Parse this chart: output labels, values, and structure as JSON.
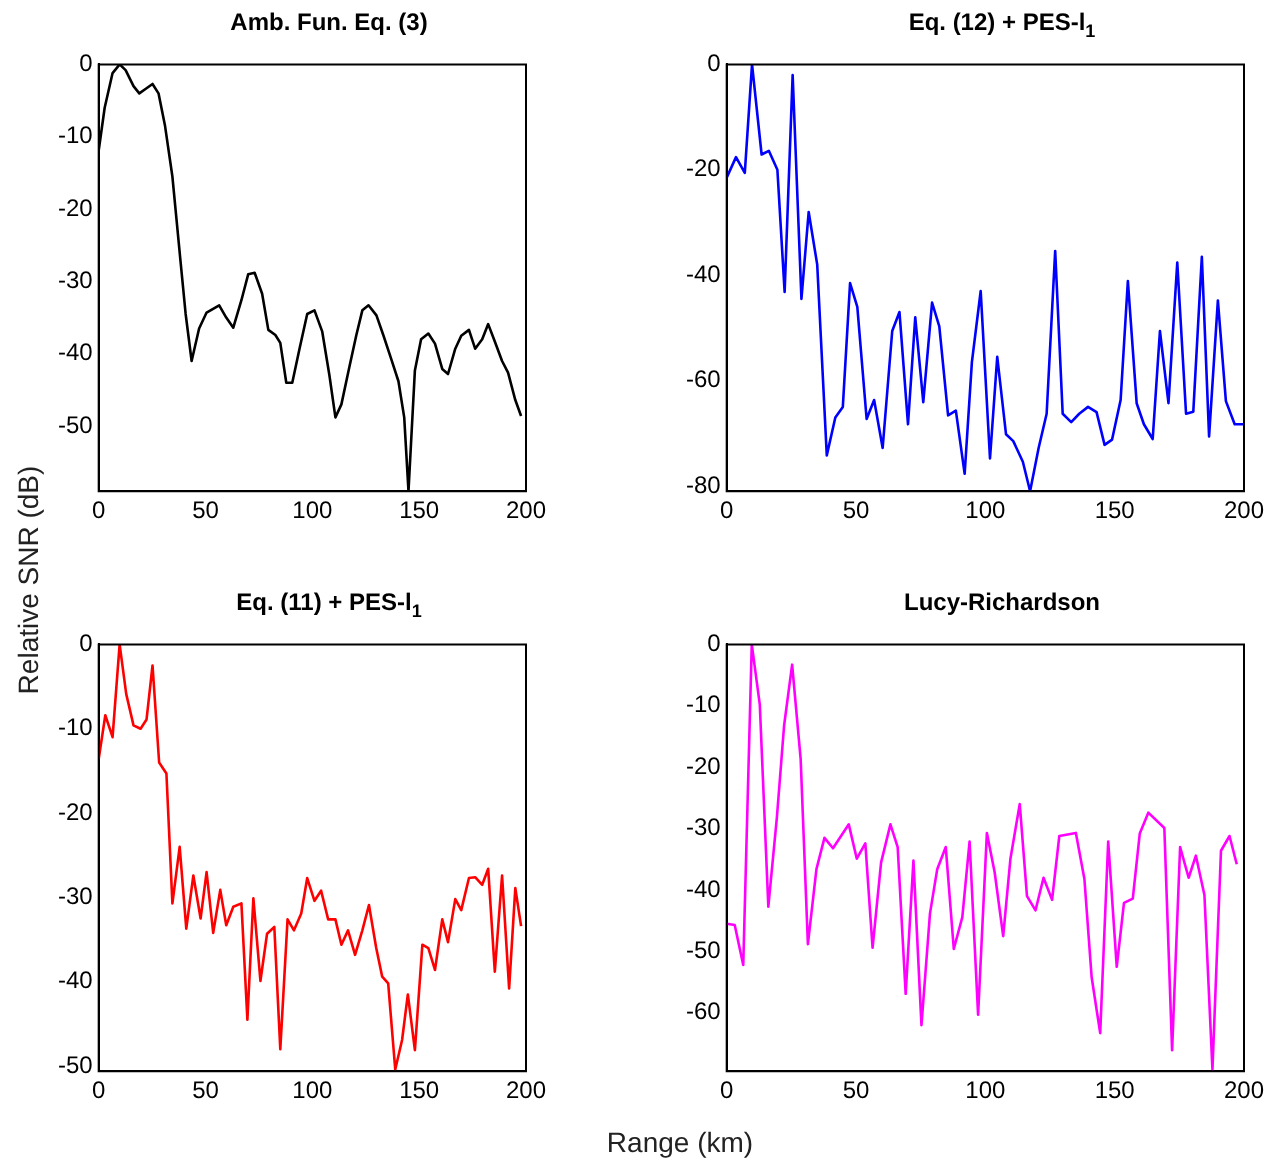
{
  "chart_data": [
    {
      "type": "line",
      "title": "Amb. Fun. Eq. (3)",
      "ylabel": "Relative SNR (dB)",
      "color": "#000000",
      "xlim": [
        0,
        200
      ],
      "xticks": [
        0,
        50,
        100,
        150,
        200
      ],
      "ylim": [
        -59,
        0
      ],
      "yticks": [
        -50,
        -40,
        -30,
        -20,
        -10,
        0
      ],
      "grid": false,
      "legend": false,
      "marker": "none",
      "x": [
        0,
        2.8,
        6.5,
        9.8,
        12.6,
        16.3,
        19,
        22.4,
        25.2,
        28,
        31,
        34.5,
        37.9,
        40.7,
        43.5,
        47,
        50.5,
        56.4,
        59.7,
        63,
        66.8,
        70,
        73,
        76.5,
        79.4,
        82.7,
        85,
        87.8,
        90.6,
        94,
        97.6,
        101,
        104.6,
        108,
        110.8,
        113.6,
        117.2,
        120.6,
        123.4,
        126.3,
        130,
        133.2,
        136.9,
        140.3,
        143,
        145,
        148,
        150.9,
        154.3,
        157.4,
        160.8,
        163.5,
        166.9,
        169.7,
        173.3,
        176.2,
        179.5,
        182.3,
        185.4,
        188.8,
        191.6,
        195,
        197.7
      ],
      "values": [
        -11.9,
        -6,
        -1.2,
        0,
        -0.8,
        -3,
        -4,
        -3.3,
        -2.7,
        -4,
        -8.4,
        -15.5,
        -26,
        -34.5,
        -41,
        -36.5,
        -34.3,
        -33.3,
        -35,
        -36.4,
        -32.6,
        -29,
        -28.8,
        -31.7,
        -36.7,
        -37.4,
        -38.5,
        -44,
        -44,
        -39.3,
        -34.5,
        -34,
        -36.9,
        -43,
        -48.8,
        -47,
        -42,
        -37.4,
        -34,
        -33.3,
        -34.7,
        -37.4,
        -40.7,
        -43.8,
        -48.8,
        -59,
        -42.3,
        -38,
        -37.2,
        -38.6,
        -42.1,
        -42.8,
        -39.3,
        -37.5,
        -36.7,
        -39.3,
        -38,
        -35.9,
        -38.3,
        -41,
        -42.6,
        -46.4,
        -48.6
      ]
    },
    {
      "type": "line",
      "title": "Eq. (12) + PES-l$_{1}$",
      "color": "#0000ff",
      "xlim": [
        0,
        200
      ],
      "xticks": [
        0,
        50,
        100,
        150,
        200
      ],
      "ylim": [
        -81,
        0
      ],
      "yticks": [
        -80,
        -60,
        -40,
        -20,
        0
      ],
      "grid": false,
      "legend": false,
      "marker": "none",
      "x": [
        0,
        3.6,
        7,
        9.8,
        13.5,
        16.3,
        19.6,
        22.4,
        25.5,
        28.9,
        31.7,
        35,
        38.7,
        42,
        44.9,
        47.7,
        50.5,
        54.1,
        57,
        60.3,
        64,
        66.8,
        70.1,
        72.9,
        76,
        79.4,
        82.2,
        85.6,
        88.6,
        92,
        94.8,
        98.2,
        101.8,
        104.6,
        108,
        110.8,
        114.5,
        117.3,
        120.6,
        123.7,
        127,
        129.9,
        133.2,
        136.3,
        139.7,
        143,
        146.1,
        149,
        152.3,
        155.1,
        158.5,
        161.3,
        164.7,
        167.5,
        170.8,
        174.2,
        177.6,
        180.4,
        183.7,
        186.5,
        189.9,
        193,
        196.4,
        200
      ],
      "values": [
        -21.5,
        -17.6,
        -20.6,
        0,
        -17.1,
        -16.4,
        -20,
        -43.2,
        -2,
        -44.5,
        -28,
        -38,
        -74.2,
        -67,
        -65,
        -41.5,
        -46,
        -67.3,
        -63.7,
        -72.8,
        -50.6,
        -47,
        -68.3,
        -48,
        -64.1,
        -45.2,
        -49.7,
        -66.6,
        -65.7,
        -77.7,
        -56.5,
        -43,
        -74.8,
        -55.5,
        -70.2,
        -71.5,
        -75.4,
        -81,
        -72.8,
        -66.3,
        -35.4,
        -66.3,
        -67.9,
        -66.3,
        -65,
        -66,
        -72.2,
        -71.2,
        -63.7,
        -41.1,
        -64.3,
        -68.3,
        -71.1,
        -50.6,
        -64.3,
        -37.6,
        -66.3,
        -65.9,
        -36.5,
        -70.6,
        -44.8,
        -63.9,
        -68.3,
        -68.3
      ]
    },
    {
      "type": "line",
      "title": "Eq. (11) + PES-l$_{1}$",
      "xlabel": "Range (km)",
      "color": "#ff0000",
      "xlim": [
        0,
        200
      ],
      "xticks": [
        0,
        50,
        100,
        150,
        200
      ],
      "ylim": [
        -50.6,
        0
      ],
      "yticks": [
        -50,
        -40,
        -30,
        -20,
        -10,
        0
      ],
      "grid": false,
      "legend": false,
      "marker": "none",
      "x": [
        0,
        3.1,
        6.5,
        9.8,
        12.9,
        16.3,
        19.6,
        22.4,
        25.2,
        28.3,
        31.7,
        34.5,
        37.9,
        41,
        44.3,
        47.7,
        50.5,
        53.6,
        56.9,
        59.7,
        63,
        66.8,
        69.6,
        72.4,
        75.7,
        78.8,
        82.2,
        85,
        88.4,
        91.4,
        94.8,
        97.6,
        101,
        104.1,
        107.4,
        110.8,
        113.6,
        116.7,
        120,
        123.4,
        126.5,
        129.9,
        132.7,
        135.5,
        138.8,
        142,
        144.7,
        148,
        151.5,
        154.3,
        157.4,
        160.8,
        163.5,
        166.9,
        169.7,
        173.3,
        176.2,
        179.5,
        182.3,
        185.4,
        188.8,
        192.1,
        195,
        197.7
      ],
      "values": [
        -13.6,
        -8.4,
        -11,
        0,
        -5.9,
        -9.6,
        -10,
        -8.9,
        -2.5,
        -14,
        -15.3,
        -30.7,
        -24,
        -33.7,
        -27.4,
        -32.5,
        -27,
        -34.2,
        -29.1,
        -33.3,
        -31.1,
        -30.7,
        -44.5,
        -30.1,
        -39.9,
        -34.3,
        -33.5,
        -48,
        -32.6,
        -33.9,
        -31.9,
        -27.7,
        -30.4,
        -29.2,
        -32.6,
        -32.6,
        -35.6,
        -33.9,
        -36.8,
        -33.9,
        -30.9,
        -36,
        -39.4,
        -40.2,
        -50.4,
        -46.9,
        -41.5,
        -48.1,
        -35.6,
        -36,
        -38.6,
        -32.6,
        -35.3,
        -30.2,
        -31.5,
        -27.7,
        -27.6,
        -28.5,
        -26.6,
        -38.8,
        -27.4,
        -40.8,
        -28.9,
        -33.4
      ]
    },
    {
      "type": "line",
      "title": "Lucy-Richardson",
      "color": "#ff00ff",
      "xlim": [
        0,
        200
      ],
      "xticks": [
        0,
        50,
        100,
        150,
        200
      ],
      "ylim": [
        -69.5,
        0
      ],
      "yticks": [
        -60,
        -50,
        -40,
        -30,
        -20,
        -10,
        0
      ],
      "grid": false,
      "legend": false,
      "marker": "none",
      "x": [
        0,
        3.1,
        6.4,
        9.7,
        12.8,
        16.1,
        19.4,
        22.2,
        25.3,
        28.6,
        31.4,
        34.7,
        37.8,
        41.1,
        47.2,
        50.3,
        53.6,
        56.4,
        59.7,
        63.3,
        66.1,
        69.2,
        72.2,
        75.3,
        78.6,
        81.4,
        84.7,
        87.8,
        91.1,
        93.9,
        97.2,
        100.6,
        103.6,
        106.9,
        109.7,
        113.3,
        116.1,
        119.4,
        122.5,
        125.8,
        128.6,
        135,
        138.3,
        141.1,
        144.4,
        147.5,
        150.8,
        153.6,
        157,
        159.7,
        163,
        169.2,
        172.2,
        175.3,
        178.6,
        181.4,
        184.7,
        187.8,
        191.1,
        194.4,
        197.2
      ],
      "values": [
        -45.5,
        -45.7,
        -52.2,
        0,
        -9.8,
        -42.7,
        -28.2,
        -13.2,
        -3.3,
        -18.7,
        -48.8,
        -36.6,
        -31.5,
        -33.2,
        -29.3,
        -34.9,
        -32.4,
        -49.4,
        -35.5,
        -29.3,
        -33,
        -56.9,
        -35.2,
        -62,
        -43.8,
        -36.6,
        -33,
        -49.6,
        -44.4,
        -32.1,
        -60.3,
        -30.7,
        -37.1,
        -47.5,
        -34.9,
        -26,
        -41,
        -43.3,
        -38,
        -41.6,
        -31.2,
        -30.7,
        -38.2,
        -54.2,
        -63.3,
        -32.1,
        -52.5,
        -42.1,
        -41.4,
        -30.8,
        -27.4,
        -29.9,
        -66.1,
        -33,
        -38,
        -34.4,
        -40.8,
        -69.2,
        -33.6,
        -31.2,
        -35.8
      ]
    }
  ]
}
